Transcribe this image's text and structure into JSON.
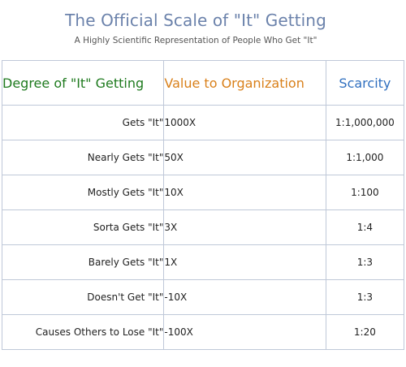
{
  "title": "The Official Scale of \"It\" Getting",
  "subtitle": "A Highly Scientific Representation of People Who Get \"It\"",
  "colors": {
    "title": "#6b82ab",
    "header_degree": "#1e7a1e",
    "header_value": "#d9801a",
    "header_scarcity": "#2f6fbf",
    "border": "#bfc8d8"
  },
  "table": {
    "headers": {
      "degree": "Degree of \"It\" Getting",
      "value": "Value to Organization",
      "scarcity": "Scarcity"
    },
    "rows": [
      {
        "degree": "Gets \"It\"",
        "value": "1000X",
        "scarcity": "1:1,000,000"
      },
      {
        "degree": "Nearly Gets \"It\"",
        "value": "50X",
        "scarcity": "1:1,000"
      },
      {
        "degree": "Mostly Gets \"It\"",
        "value": "10X",
        "scarcity": "1:100"
      },
      {
        "degree": "Sorta Gets \"It\"",
        "value": "3X",
        "scarcity": "1:4"
      },
      {
        "degree": "Barely Gets \"It\"",
        "value": "1X",
        "scarcity": "1:3"
      },
      {
        "degree": "Doesn't Get \"It\"",
        "value": "-10X",
        "scarcity": "1:3"
      },
      {
        "degree": "Causes Others to Lose \"It\"",
        "value": "-100X",
        "scarcity": "1:20"
      }
    ]
  }
}
